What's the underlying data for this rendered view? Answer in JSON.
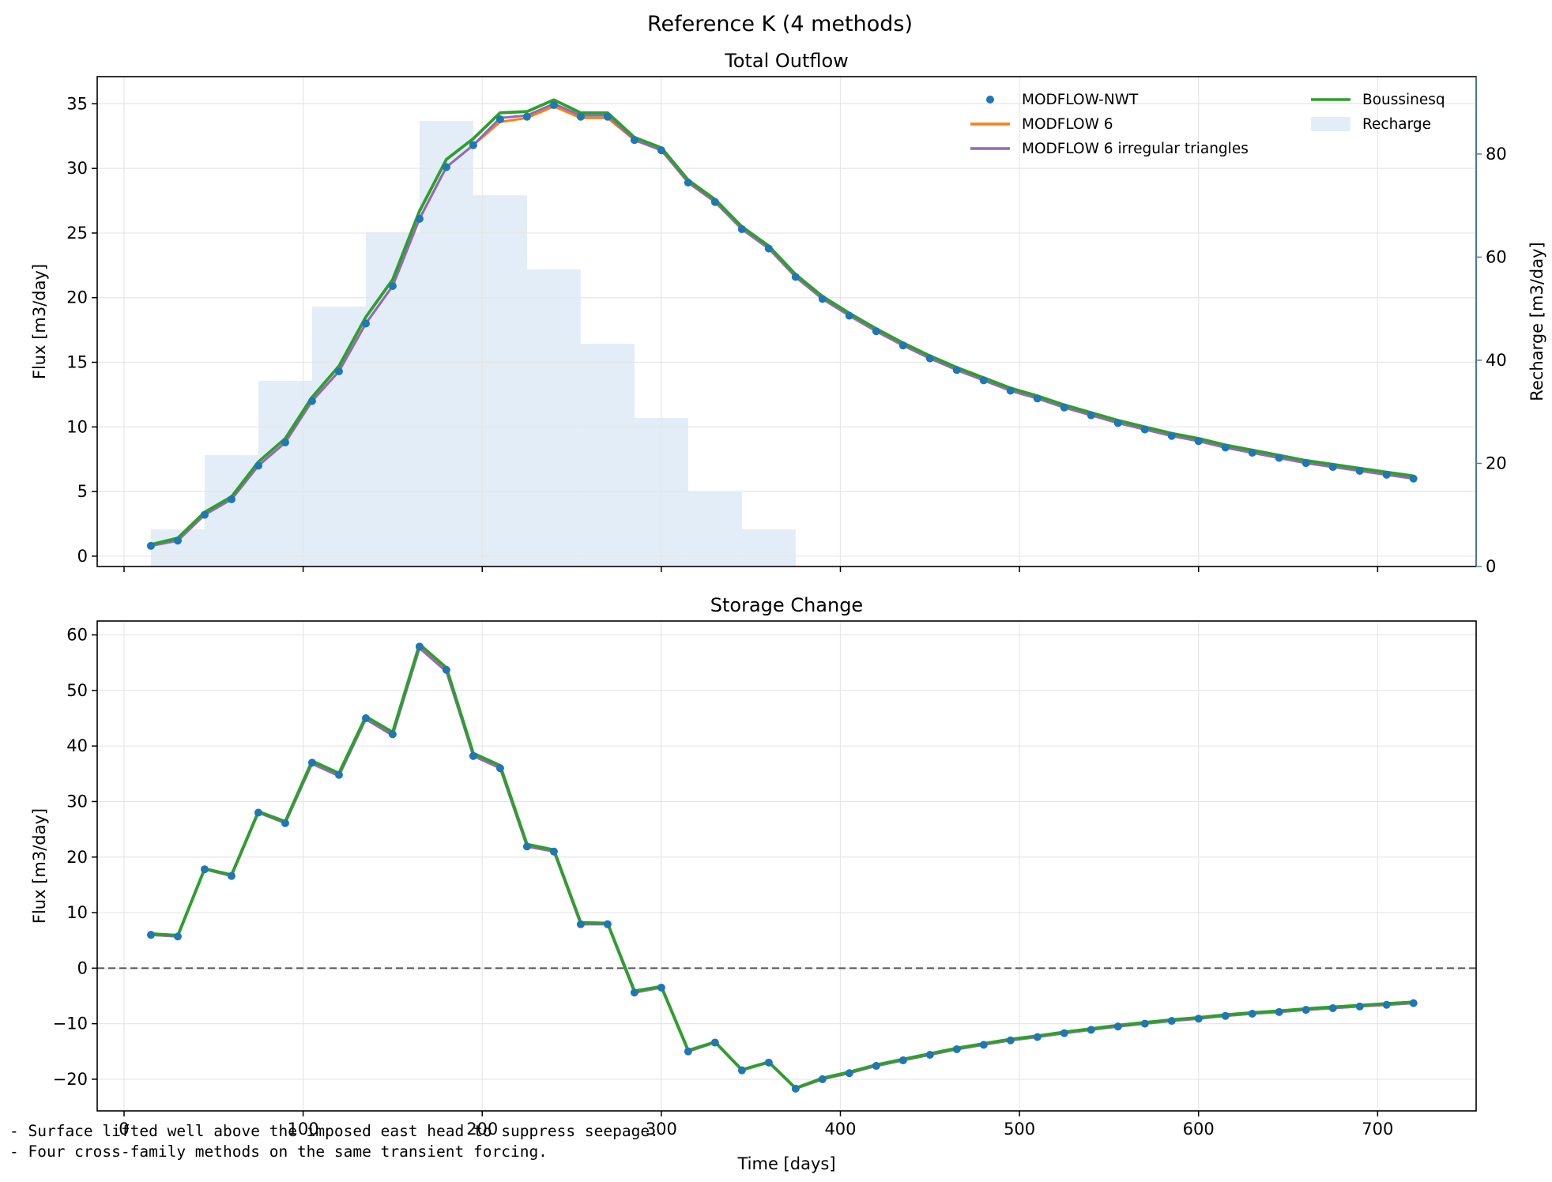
{
  "suptitle": "Reference K (4 methods)",
  "notes": [
    "- Surface lifted well above the imposed east head to suppress seepage.",
    "- Four cross-family methods on the same transient forcing."
  ],
  "colors": {
    "nwt": "#1f77b4",
    "mf6": "#ff7f0e",
    "tri": "#9467bd",
    "bous": "#2ca02c",
    "recharge": "#c6dbef",
    "right_axis": "#4a7aa5",
    "zero_line": "#555555"
  },
  "chart_data": [
    {
      "type": "line",
      "title": "Total Outflow",
      "xlabel": "",
      "ylabel": "Flux [m3/day]",
      "ylabel_right": "Recharge [m3/day]",
      "xlim": [
        -15,
        755
      ],
      "ylim": [
        -0.8,
        37.1
      ],
      "ylim_right": [
        0,
        95
      ],
      "xticks": [
        0,
        100,
        200,
        300,
        400,
        500,
        600,
        700
      ],
      "xticklabels_shown": false,
      "yticks": [
        0,
        5,
        10,
        15,
        20,
        25,
        30,
        35
      ],
      "yticks_right": [
        0,
        20,
        40,
        60,
        80
      ],
      "grid": true,
      "legend_position": "top-right",
      "legend": [
        "MODFLOW-NWT",
        "MODFLOW 6",
        "MODFLOW 6 irregular triangles",
        "Boussinesq",
        "Recharge"
      ],
      "x": [
        15,
        30,
        45,
        60,
        75,
        90,
        105,
        120,
        135,
        150,
        165,
        180,
        195,
        210,
        225,
        240,
        255,
        270,
        285,
        300,
        315,
        330,
        345,
        360,
        375,
        390,
        405,
        420,
        435,
        450,
        465,
        480,
        495,
        510,
        525,
        540,
        555,
        570,
        585,
        600,
        615,
        630,
        645,
        660,
        675,
        690,
        705,
        720
      ],
      "series": [
        {
          "name": "MODFLOW-NWT",
          "style": "markers",
          "values": [
            0.8,
            1.2,
            3.2,
            4.4,
            7.0,
            8.8,
            12.0,
            14.3,
            18.0,
            20.9,
            26.1,
            30.1,
            31.8,
            33.8,
            34.0,
            34.9,
            34.0,
            34.0,
            32.2,
            31.4,
            28.9,
            27.4,
            25.3,
            23.8,
            21.6,
            19.9,
            18.6,
            17.4,
            16.3,
            15.3,
            14.4,
            13.6,
            12.8,
            12.2,
            11.5,
            10.9,
            10.3,
            9.8,
            9.3,
            8.9,
            8.4,
            8.0,
            7.6,
            7.2,
            6.9,
            6.6,
            6.3,
            6.0
          ]
        },
        {
          "name": "MODFLOW 6",
          "style": "line",
          "values": [
            0.8,
            1.2,
            3.2,
            4.4,
            7.0,
            8.8,
            12.0,
            14.3,
            18.0,
            20.9,
            26.1,
            30.1,
            31.8,
            33.6,
            33.9,
            34.8,
            33.9,
            33.9,
            32.2,
            31.4,
            28.9,
            27.4,
            25.3,
            23.8,
            21.6,
            19.9,
            18.6,
            17.4,
            16.3,
            15.3,
            14.4,
            13.6,
            12.8,
            12.2,
            11.5,
            10.9,
            10.3,
            9.8,
            9.3,
            8.9,
            8.4,
            8.0,
            7.6,
            7.2,
            6.9,
            6.6,
            6.3,
            6.0
          ]
        },
        {
          "name": "MODFLOW 6 irregular triangles",
          "style": "line",
          "values": [
            0.8,
            1.2,
            3.2,
            4.4,
            7.0,
            8.8,
            12.0,
            14.3,
            18.0,
            20.9,
            26.1,
            30.1,
            31.8,
            33.9,
            34.1,
            35.0,
            34.1,
            34.1,
            32.2,
            31.4,
            28.9,
            27.4,
            25.3,
            23.8,
            21.6,
            19.9,
            18.6,
            17.4,
            16.3,
            15.3,
            14.4,
            13.6,
            12.8,
            12.2,
            11.5,
            10.9,
            10.3,
            9.8,
            9.3,
            8.9,
            8.4,
            8.0,
            7.6,
            7.2,
            6.9,
            6.6,
            6.3,
            6.0
          ]
        },
        {
          "name": "Boussinesq",
          "style": "line",
          "values": [
            0.9,
            1.4,
            3.4,
            4.6,
            7.3,
            9.1,
            12.3,
            14.7,
            18.5,
            21.4,
            26.7,
            30.7,
            32.3,
            34.3,
            34.4,
            35.3,
            34.3,
            34.3,
            32.4,
            31.6,
            29.1,
            27.6,
            25.5,
            24.0,
            21.8,
            20.1,
            18.8,
            17.6,
            16.5,
            15.5,
            14.6,
            13.8,
            13.0,
            12.4,
            11.7,
            11.1,
            10.5,
            10.0,
            9.5,
            9.1,
            8.6,
            8.2,
            7.8,
            7.4,
            7.1,
            6.8,
            6.5,
            6.2
          ]
        }
      ],
      "recharge": {
        "name": "Recharge",
        "axis": "right",
        "bin_edges": [
          15,
          45,
          75,
          105,
          135,
          165,
          195,
          225,
          255,
          285,
          315,
          345,
          375
        ],
        "values": [
          7.2,
          21.6,
          36.0,
          50.4,
          64.8,
          86.4,
          72.0,
          57.6,
          43.2,
          28.8,
          14.4,
          7.2
        ]
      }
    },
    {
      "type": "line",
      "title": "Storage Change",
      "xlabel": "Time [days]",
      "ylabel": "Flux [m3/day]",
      "xlim": [
        -15,
        755
      ],
      "ylim": [
        -25.7,
        62.5
      ],
      "xticks": [
        0,
        100,
        200,
        300,
        400,
        500,
        600,
        700
      ],
      "yticks": [
        -20,
        -10,
        0,
        10,
        20,
        30,
        40,
        50,
        60
      ],
      "grid": true,
      "reference_line": 0,
      "x": [
        15,
        30,
        45,
        60,
        75,
        90,
        105,
        120,
        135,
        150,
        165,
        180,
        195,
        210,
        225,
        240,
        255,
        270,
        285,
        300,
        315,
        330,
        345,
        360,
        375,
        390,
        405,
        420,
        435,
        450,
        465,
        480,
        495,
        510,
        525,
        540,
        555,
        570,
        585,
        600,
        615,
        630,
        645,
        660,
        675,
        690,
        705,
        720
      ],
      "series": [
        {
          "name": "MODFLOW-NWT",
          "style": "markers",
          "values": [
            6.0,
            5.7,
            17.8,
            16.6,
            28.0,
            26.1,
            37.0,
            34.8,
            45.0,
            42.1,
            57.9,
            53.7,
            38.2,
            36.0,
            21.9,
            21.0,
            7.9,
            7.9,
            -4.4,
            -3.5,
            -15.0,
            -13.4,
            -18.4,
            -17.0,
            -21.7,
            -20.0,
            -18.9,
            -17.6,
            -16.6,
            -15.6,
            -14.6,
            -13.8,
            -13.0,
            -12.4,
            -11.7,
            -11.1,
            -10.5,
            -10.0,
            -9.5,
            -9.1,
            -8.6,
            -8.2,
            -7.9,
            -7.5,
            -7.2,
            -6.9,
            -6.6,
            -6.3
          ]
        },
        {
          "name": "MODFLOW 6",
          "style": "line",
          "values": [
            6.0,
            5.7,
            17.8,
            16.6,
            28.0,
            26.1,
            37.0,
            34.8,
            45.0,
            42.1,
            57.9,
            53.7,
            38.2,
            36.0,
            21.9,
            21.0,
            7.9,
            7.9,
            -4.4,
            -3.5,
            -15.0,
            -13.4,
            -18.4,
            -17.0,
            -21.7,
            -20.0,
            -18.9,
            -17.6,
            -16.6,
            -15.6,
            -14.6,
            -13.8,
            -13.0,
            -12.4,
            -11.7,
            -11.1,
            -10.5,
            -10.0,
            -9.5,
            -9.1,
            -8.6,
            -8.2,
            -7.9,
            -7.5,
            -7.2,
            -6.9,
            -6.6,
            -6.3
          ]
        },
        {
          "name": "MODFLOW 6 irregular triangles",
          "style": "line",
          "values": [
            6.0,
            5.7,
            17.8,
            16.6,
            28.0,
            26.1,
            36.8,
            34.6,
            44.8,
            41.9,
            57.6,
            53.4,
            38.2,
            36.0,
            21.9,
            21.0,
            7.9,
            7.9,
            -4.4,
            -3.5,
            -15.0,
            -13.4,
            -18.4,
            -17.0,
            -21.7,
            -20.0,
            -18.9,
            -17.6,
            -16.6,
            -15.6,
            -14.6,
            -13.8,
            -13.0,
            -12.4,
            -11.7,
            -11.1,
            -10.5,
            -10.0,
            -9.5,
            -9.1,
            -8.6,
            -8.2,
            -7.9,
            -7.5,
            -7.2,
            -6.9,
            -6.6,
            -6.3
          ]
        },
        {
          "name": "Boussinesq",
          "style": "line",
          "values": [
            6.2,
            5.9,
            17.9,
            16.8,
            28.2,
            26.4,
            37.3,
            35.1,
            45.3,
            42.5,
            58.3,
            54.1,
            38.7,
            36.5,
            22.3,
            21.3,
            8.2,
            8.1,
            -4.1,
            -3.3,
            -14.8,
            -13.3,
            -18.3,
            -16.9,
            -21.6,
            -19.8,
            -18.7,
            -17.4,
            -16.4,
            -15.4,
            -14.4,
            -13.6,
            -12.8,
            -12.2,
            -11.5,
            -10.9,
            -10.3,
            -9.8,
            -9.3,
            -8.9,
            -8.4,
            -8.0,
            -7.7,
            -7.3,
            -7.0,
            -6.7,
            -6.4,
            -6.1
          ]
        }
      ]
    }
  ]
}
